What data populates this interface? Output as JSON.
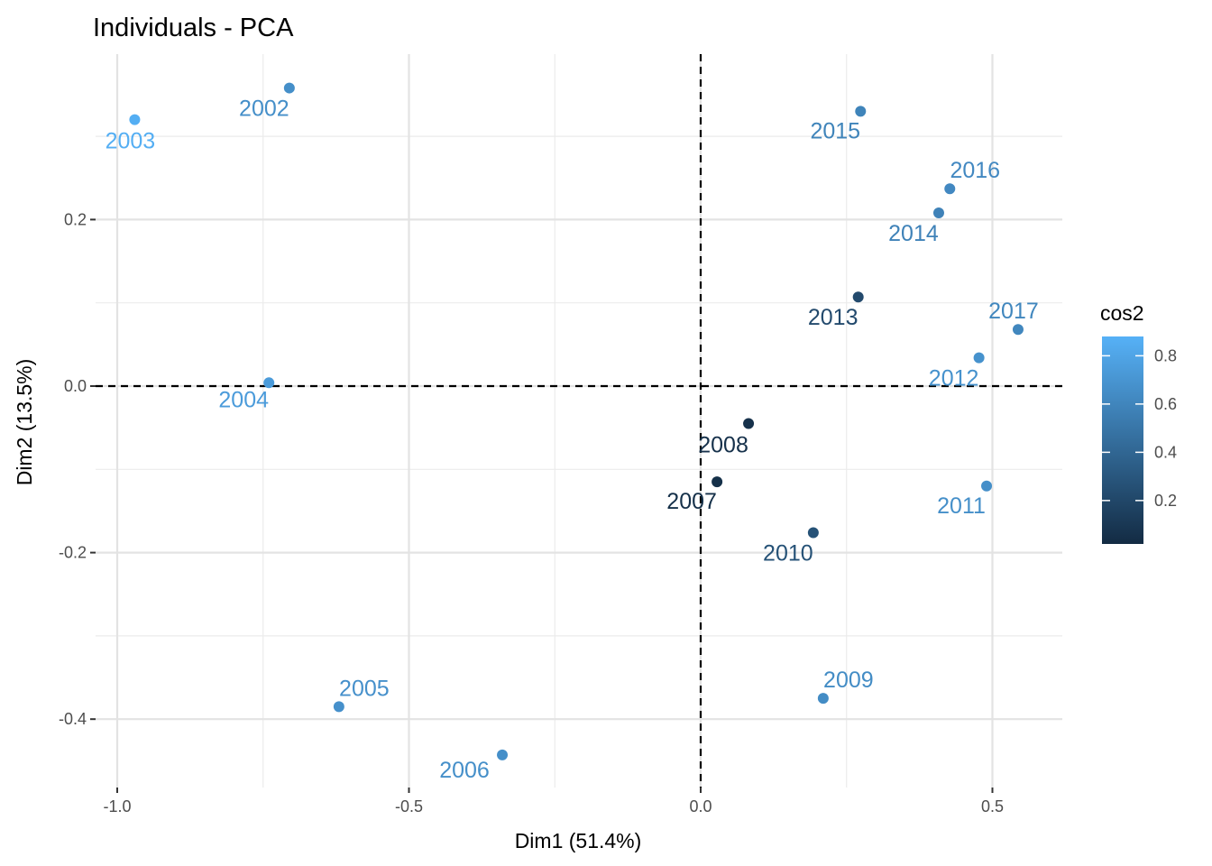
{
  "chart_data": {
    "type": "scatter",
    "title": "Individuals - PCA",
    "xlabel": "Dim1 (51.4%)",
    "ylabel": "Dim2 (13.5%)",
    "xlim": [
      -1.0,
      0.62
    ],
    "ylim": [
      -0.47,
      0.4
    ],
    "x_ticks": [
      -1.0,
      -0.5,
      0.0,
      0.5
    ],
    "x_tick_labels": [
      "-1.0",
      "-0.5",
      "0.0",
      "0.5"
    ],
    "y_ticks": [
      -0.4,
      -0.2,
      0.0,
      0.2
    ],
    "y_tick_labels": [
      "-0.4",
      "-0.2",
      "0.0",
      "0.2"
    ],
    "grid": true,
    "reference_lines": {
      "x": 0,
      "y": 0,
      "style": "dashed"
    },
    "color_scale": {
      "name": "cos2",
      "low_color": "#132b43",
      "high_color": "#56b1f7",
      "range": [
        0.02,
        0.88
      ],
      "ticks": [
        0.2,
        0.4,
        0.6,
        0.8
      ],
      "tick_labels": [
        "0.2",
        "0.4",
        "0.6",
        "0.8"
      ]
    },
    "legend_position": "right",
    "points": [
      {
        "label": "2002",
        "x": -0.705,
        "y": 0.358,
        "cos2": 0.66
      },
      {
        "label": "2003",
        "x": -0.97,
        "y": 0.32,
        "cos2": 0.86
      },
      {
        "label": "2004",
        "x": -0.74,
        "y": 0.004,
        "cos2": 0.74
      },
      {
        "label": "2005",
        "x": -0.62,
        "y": -0.385,
        "cos2": 0.67
      },
      {
        "label": "2006",
        "x": -0.34,
        "y": -0.443,
        "cos2": 0.66
      },
      {
        "label": "2007",
        "x": 0.028,
        "y": -0.115,
        "cos2": 0.05
      },
      {
        "label": "2008",
        "x": 0.082,
        "y": -0.045,
        "cos2": 0.06
      },
      {
        "label": "2009",
        "x": 0.21,
        "y": -0.375,
        "cos2": 0.64
      },
      {
        "label": "2010",
        "x": 0.193,
        "y": -0.176,
        "cos2": 0.27
      },
      {
        "label": "2011",
        "x": 0.49,
        "y": -0.12,
        "cos2": 0.66
      },
      {
        "label": "2012",
        "x": 0.477,
        "y": 0.034,
        "cos2": 0.68
      },
      {
        "label": "2013",
        "x": 0.27,
        "y": 0.107,
        "cos2": 0.22
      },
      {
        "label": "2014",
        "x": 0.408,
        "y": 0.208,
        "cos2": 0.58
      },
      {
        "label": "2015",
        "x": 0.274,
        "y": 0.33,
        "cos2": 0.59
      },
      {
        "label": "2016",
        "x": 0.427,
        "y": 0.237,
        "cos2": 0.62
      },
      {
        "label": "2017",
        "x": 0.544,
        "y": 0.068,
        "cos2": 0.61
      }
    ]
  }
}
